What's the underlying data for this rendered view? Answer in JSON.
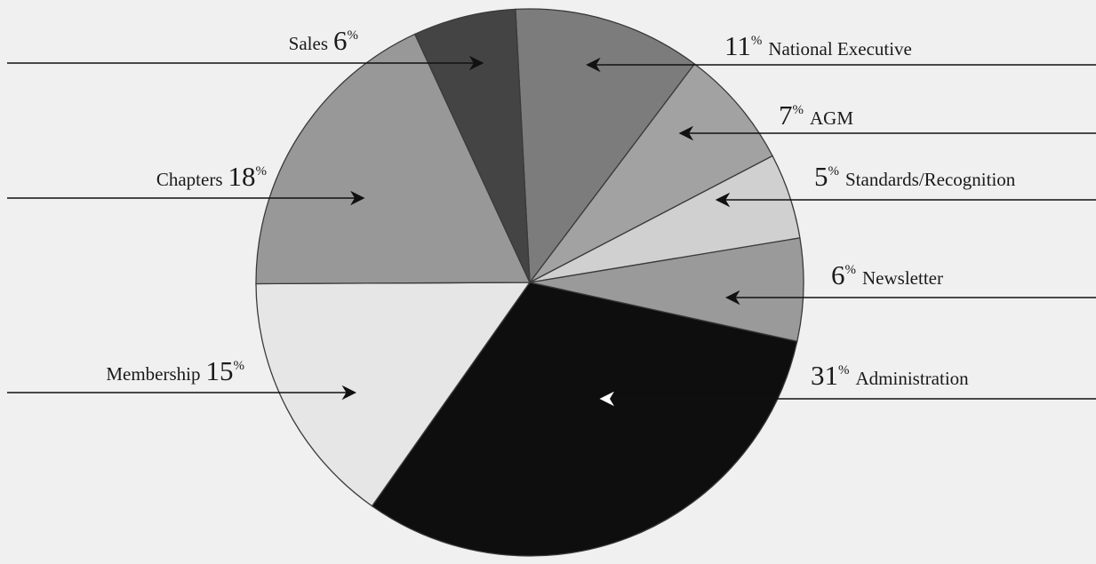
{
  "chart_data": {
    "type": "pie",
    "slices": [
      {
        "label": "National Executive",
        "value": 11,
        "color": "#7c7c7c"
      },
      {
        "label": "AGM",
        "value": 7,
        "color": "#a2a2a2"
      },
      {
        "label": "Standards/Recognition",
        "value": 5,
        "color": "#d0d0d0"
      },
      {
        "label": "Newsletter",
        "value": 6,
        "color": "#9a9a9a"
      },
      {
        "label": "Administration",
        "value": 31,
        "color": "#0e0e0e"
      },
      {
        "label": "Membership",
        "value": 15,
        "color": "#e6e6e6"
      },
      {
        "label": "Chapters",
        "value": 18,
        "color": "#989898"
      },
      {
        "label": "Sales",
        "value": 6,
        "color": "#444444"
      }
    ],
    "percent_symbol": "%"
  }
}
